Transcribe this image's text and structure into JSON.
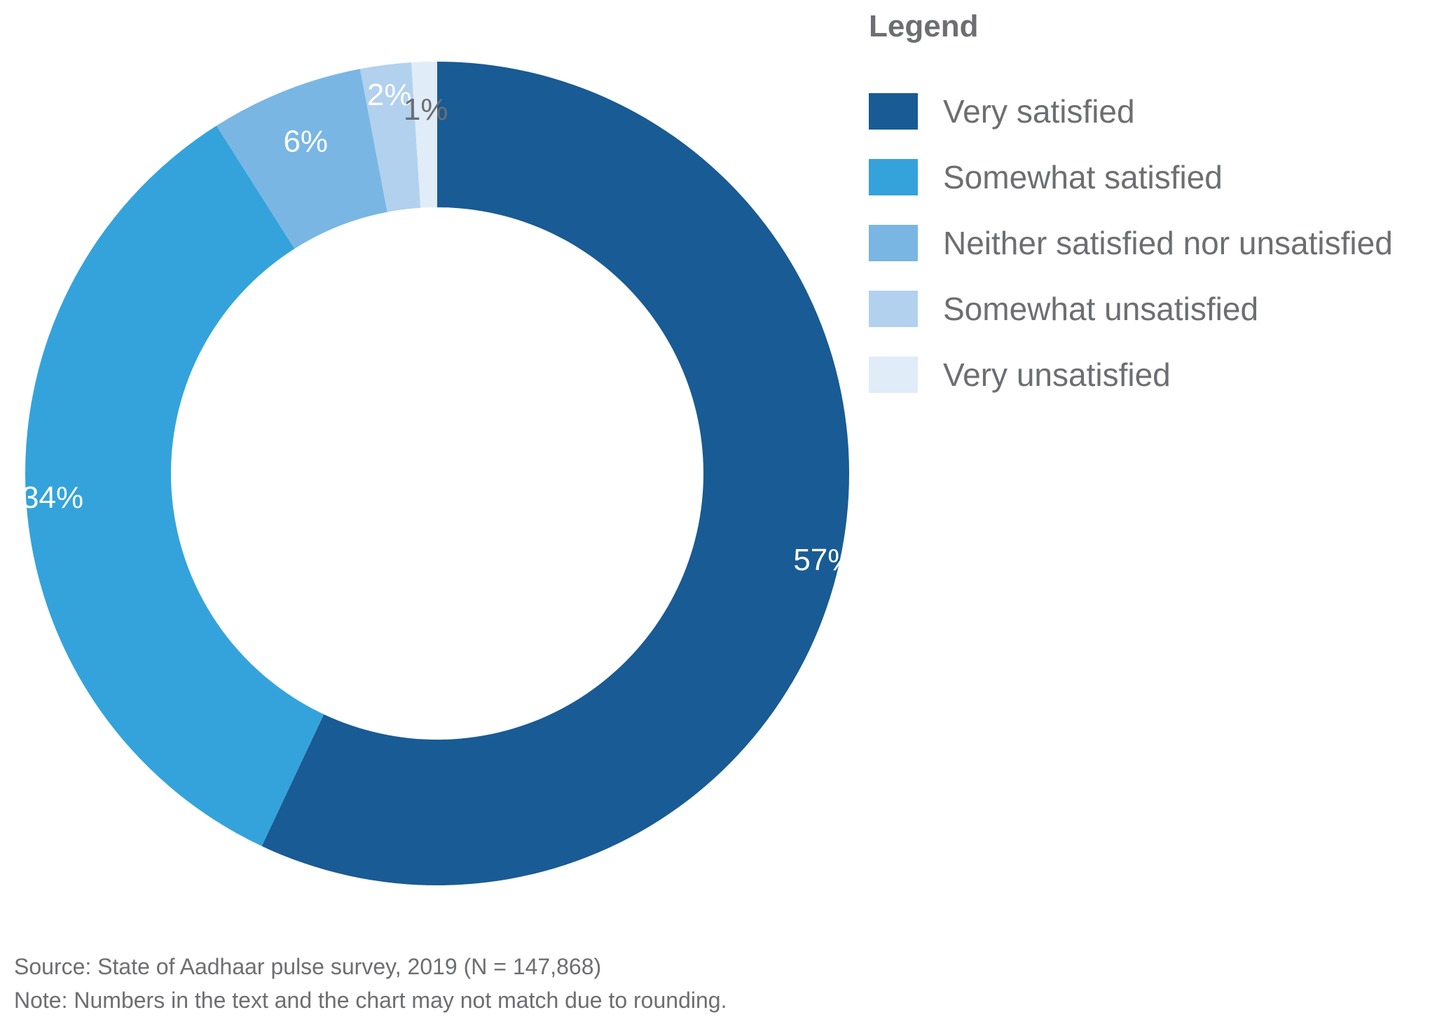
{
  "chart_data": {
    "type": "pie",
    "variant": "donut",
    "title": "",
    "legend_title": "Legend",
    "legend_position": "right",
    "categories": [
      "Very satisfied",
      "Somewhat satisfied",
      "Neither satisfied nor unsatisfied",
      "Somewhat unsatisfied",
      "Very unsatisfied"
    ],
    "values": [
      57,
      34,
      6,
      2,
      1
    ],
    "labels": [
      "57%",
      "34%",
      "6%",
      "2%",
      "1%"
    ],
    "colors": [
      "#195b94",
      "#34a3db",
      "#79b6e3",
      "#b1d1ee",
      "#e0ecf8"
    ],
    "label_colors": [
      "#ffffff",
      "#ffffff",
      "#ffffff",
      "#ffffff",
      "#6d6e71"
    ]
  },
  "footnotes": {
    "source": "Source: State of Aadhaar pulse survey, 2019 (N = 147,868)",
    "note": "Note: Numbers in the text and the chart may not match due to rounding."
  }
}
